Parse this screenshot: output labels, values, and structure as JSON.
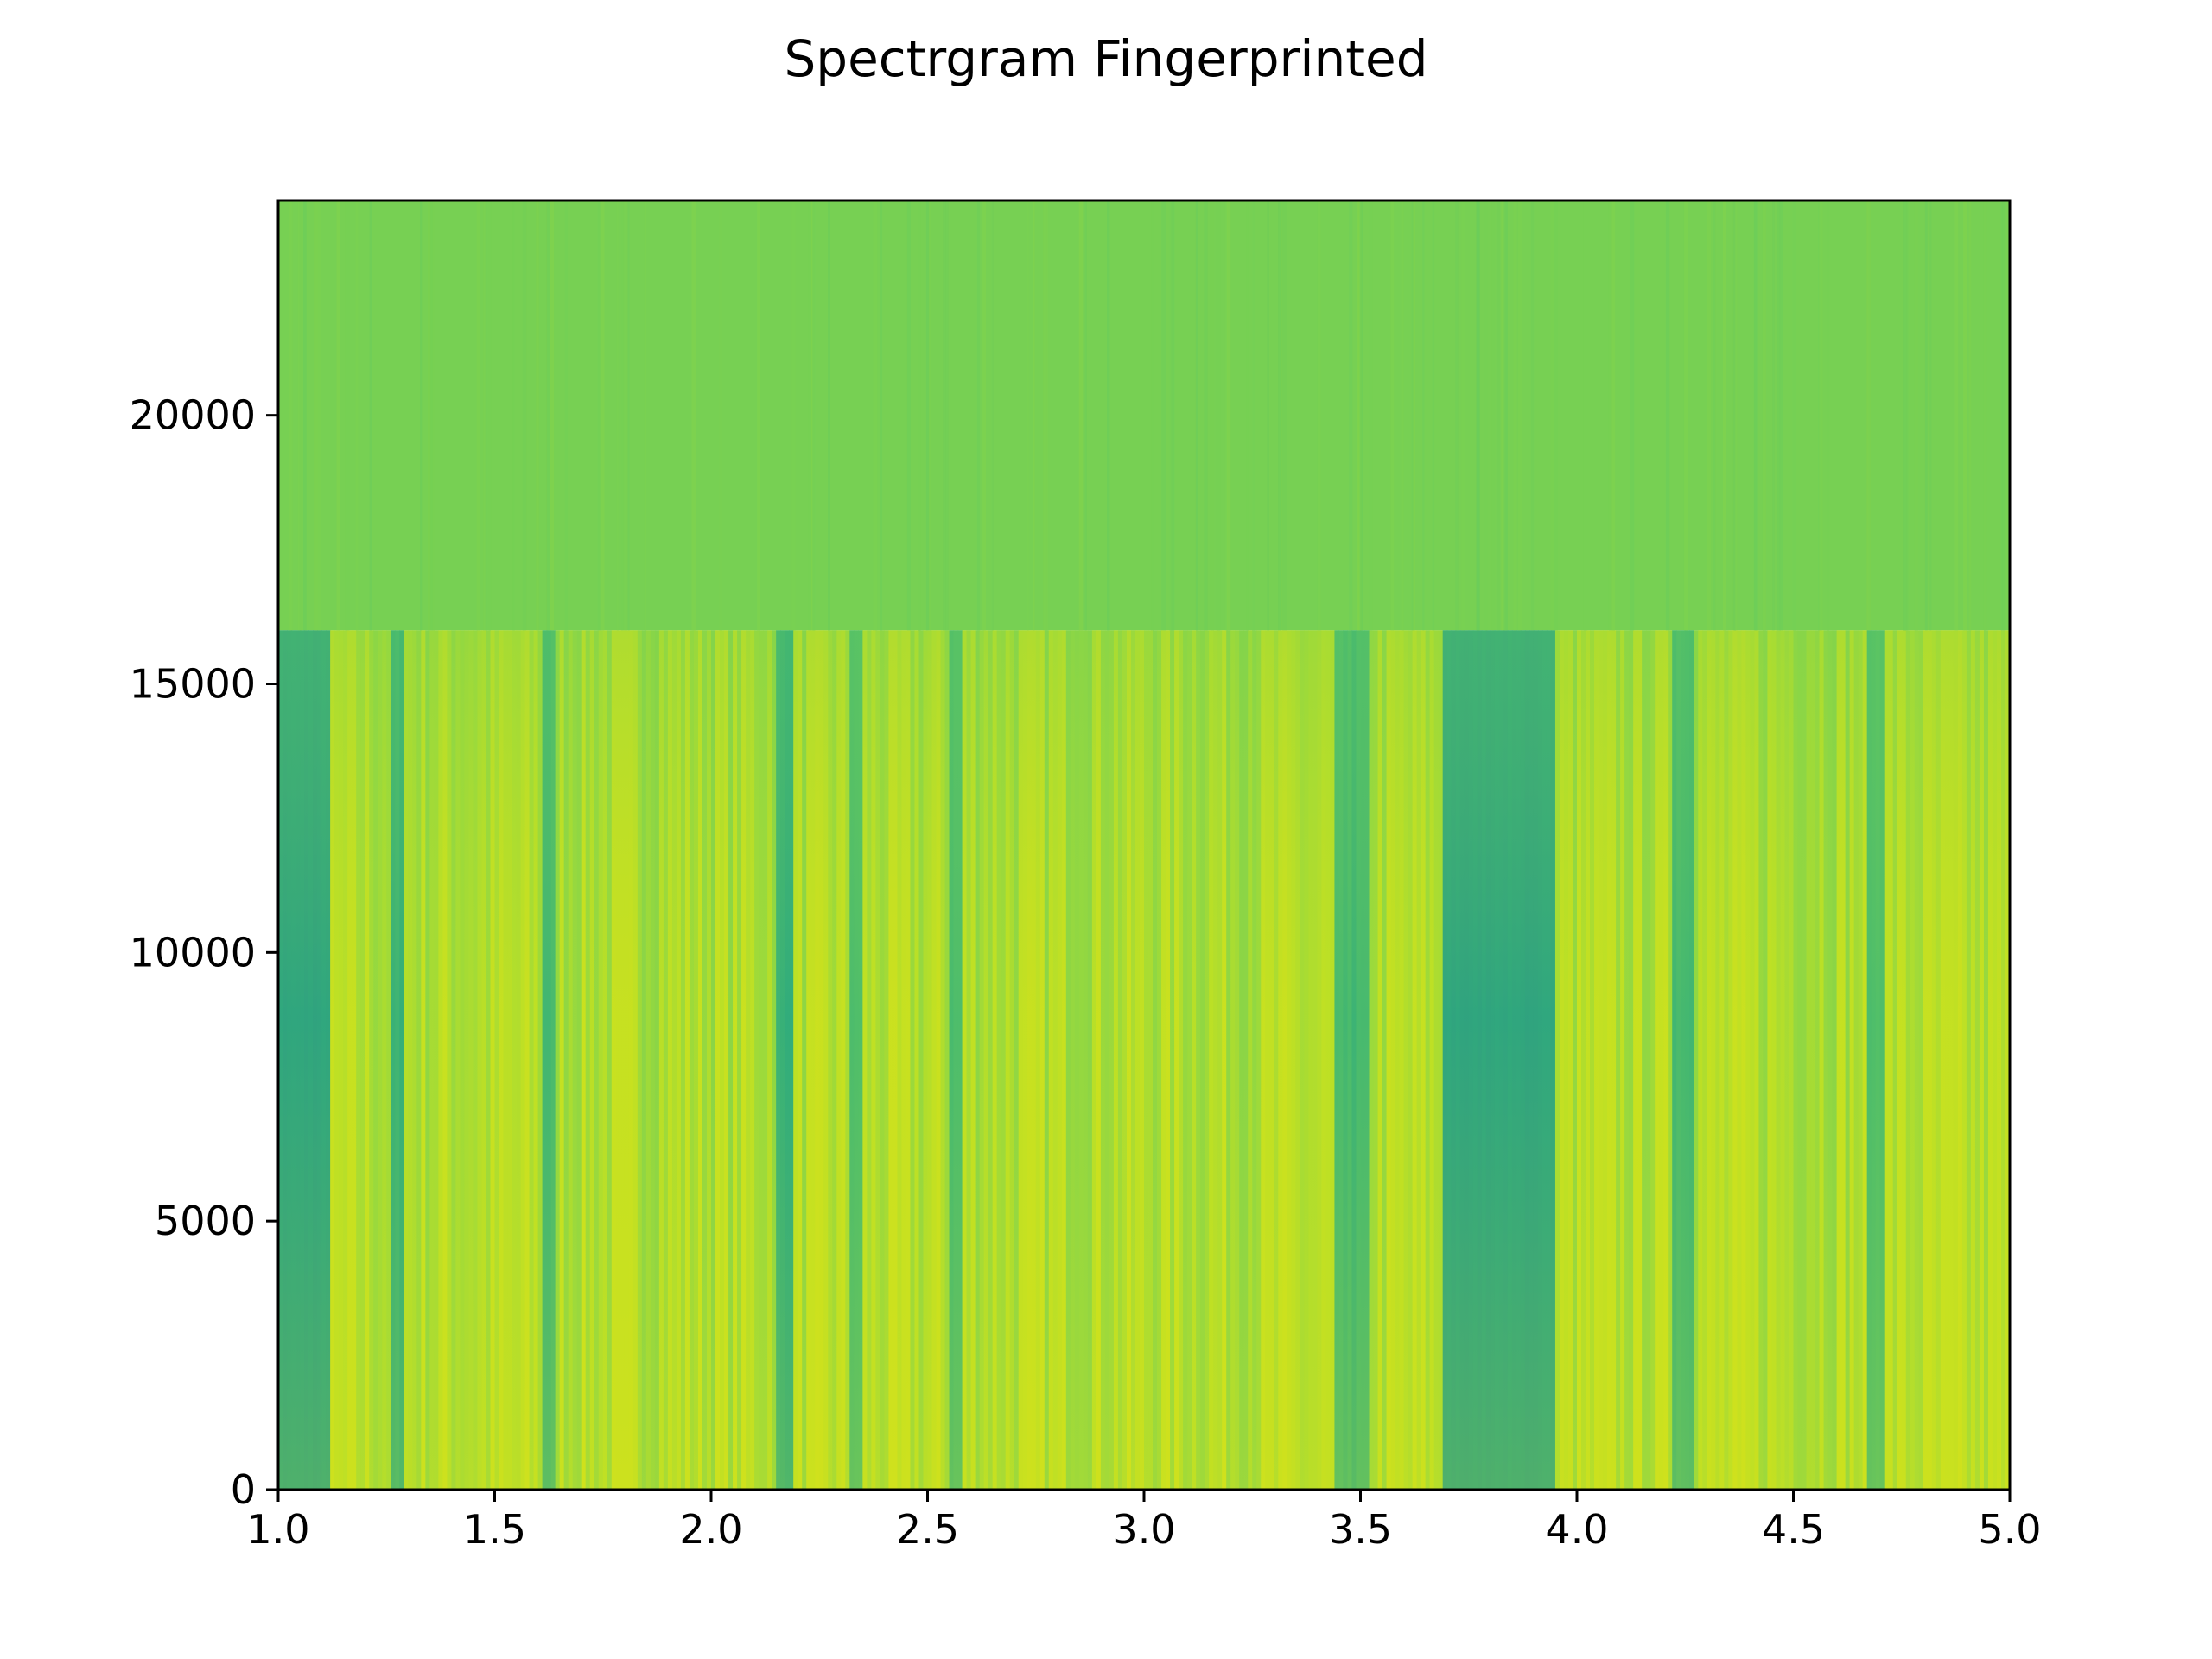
{
  "chart_data": {
    "type": "heatmap",
    "title": "Spectrgram Fingerprinted",
    "xlabel": "",
    "ylabel": "",
    "xlim": [
      1.0,
      5.0
    ],
    "ylim": [
      0,
      24000
    ],
    "x_ticks": [
      1.0,
      1.5,
      2.0,
      2.5,
      3.0,
      3.5,
      4.0,
      4.5,
      5.0
    ],
    "x_tick_labels": [
      "1.0",
      "1.5",
      "2.0",
      "2.5",
      "3.0",
      "3.5",
      "4.0",
      "4.5",
      "5.0"
    ],
    "y_ticks": [
      0,
      5000,
      10000,
      15000,
      20000
    ],
    "y_tick_labels": [
      "0",
      "5000",
      "10000",
      "15000",
      "20000"
    ],
    "grid": false,
    "colormap": "viridis",
    "colors": {
      "upper_band": "#77cf4f",
      "low_intensity": "#21a685",
      "mid_intensity": "#7fd34e",
      "high_intensity": "#d8e219"
    },
    "bands": [
      {
        "name": "upper",
        "y_range": [
          16000,
          24000
        ],
        "level": 0.75
      },
      {
        "name": "lower",
        "y_range": [
          0,
          16000
        ]
      }
    ],
    "dark_segments": [
      {
        "x_range": [
          1.0,
          1.12
        ],
        "level": 0.55
      },
      {
        "x_range": [
          1.26,
          1.29
        ],
        "level": 0.6
      },
      {
        "x_range": [
          1.61,
          1.64
        ],
        "level": 0.62
      },
      {
        "x_range": [
          2.15,
          2.19
        ],
        "level": 0.6
      },
      {
        "x_range": [
          2.32,
          2.35
        ],
        "level": 0.64
      },
      {
        "x_range": [
          2.55,
          2.58
        ],
        "level": 0.64
      },
      {
        "x_range": [
          3.44,
          3.52
        ],
        "level": 0.62
      },
      {
        "x_range": [
          3.69,
          3.95
        ],
        "level": 0.55
      },
      {
        "x_range": [
          4.22,
          4.27
        ],
        "level": 0.63
      },
      {
        "x_range": [
          4.67,
          4.71
        ],
        "level": 0.65
      }
    ]
  }
}
